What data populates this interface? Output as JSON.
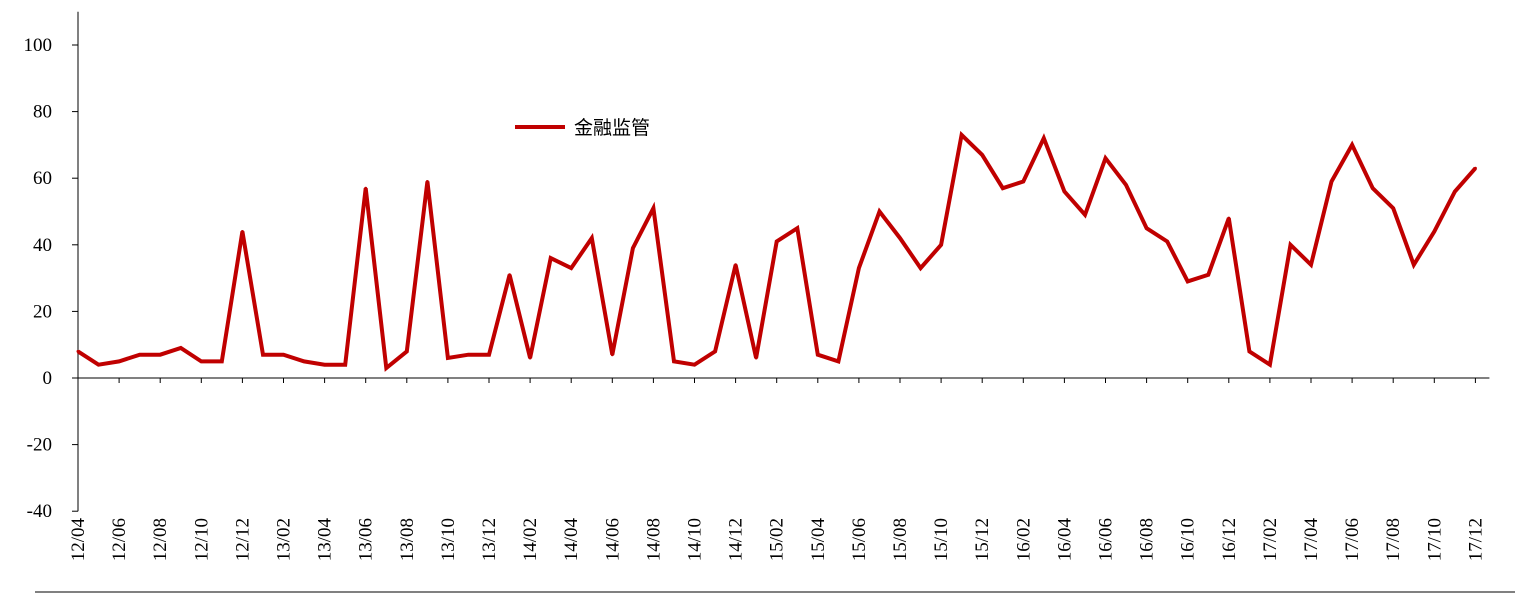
{
  "chart_data": {
    "type": "line",
    "title": "",
    "xlabel": "",
    "ylabel": "",
    "ylim": [
      -40,
      110
    ],
    "yticks": [
      -40,
      -20,
      0,
      20,
      40,
      60,
      80,
      100
    ],
    "x": [
      "12/04",
      "12/05",
      "12/06",
      "12/07",
      "12/08",
      "12/09",
      "12/10",
      "12/11",
      "12/12",
      "13/01",
      "13/02",
      "13/03",
      "13/04",
      "13/05",
      "13/06",
      "13/07",
      "13/08",
      "13/09",
      "13/10",
      "13/11",
      "13/12",
      "14/01",
      "14/02",
      "14/03",
      "14/04",
      "14/05",
      "14/06",
      "14/07",
      "14/08",
      "14/09",
      "14/10",
      "14/11",
      "14/12",
      "15/01",
      "15/02",
      "15/03",
      "15/04",
      "15/05",
      "15/06",
      "15/07",
      "15/08",
      "15/09",
      "15/10",
      "15/11",
      "15/12",
      "16/01",
      "16/02",
      "16/03",
      "16/04",
      "16/05",
      "16/06",
      "16/07",
      "16/08",
      "16/09",
      "16/10",
      "16/11",
      "16/12",
      "17/01",
      "17/02",
      "17/03",
      "17/04",
      "17/05",
      "17/06",
      "17/07",
      "17/08",
      "17/09",
      "17/10",
      "17/11",
      "17/12"
    ],
    "xtick_labels": [
      "12/04",
      "12/06",
      "12/08",
      "12/10",
      "12/12",
      "13/02",
      "13/04",
      "13/06",
      "13/08",
      "13/10",
      "13/12",
      "14/02",
      "14/04",
      "14/06",
      "14/08",
      "14/10",
      "14/12",
      "15/02",
      "15/04",
      "15/06",
      "15/08",
      "15/10",
      "15/12",
      "16/02",
      "16/04",
      "16/06",
      "16/08",
      "16/10",
      "16/12",
      "17/02",
      "17/04",
      "17/06",
      "17/08",
      "17/10",
      "17/12"
    ],
    "series": [
      {
        "name": "金融监管",
        "color": "#c00000",
        "values": [
          8,
          4,
          5,
          7,
          7,
          9,
          5,
          5,
          44,
          7,
          7,
          5,
          4,
          4,
          57,
          3,
          8,
          59,
          6,
          7,
          7,
          31,
          6,
          36,
          33,
          42,
          7,
          39,
          51,
          5,
          4,
          8,
          34,
          6,
          41,
          45,
          7,
          5,
          33,
          50,
          42,
          33,
          40,
          73,
          67,
          57,
          59,
          72,
          56,
          49,
          66,
          58,
          45,
          41,
          29,
          31,
          48,
          8,
          4,
          40,
          34,
          59,
          70,
          57,
          51,
          34,
          44,
          56,
          63
        ]
      }
    ],
    "legend_position": "top-left",
    "grid": false
  }
}
